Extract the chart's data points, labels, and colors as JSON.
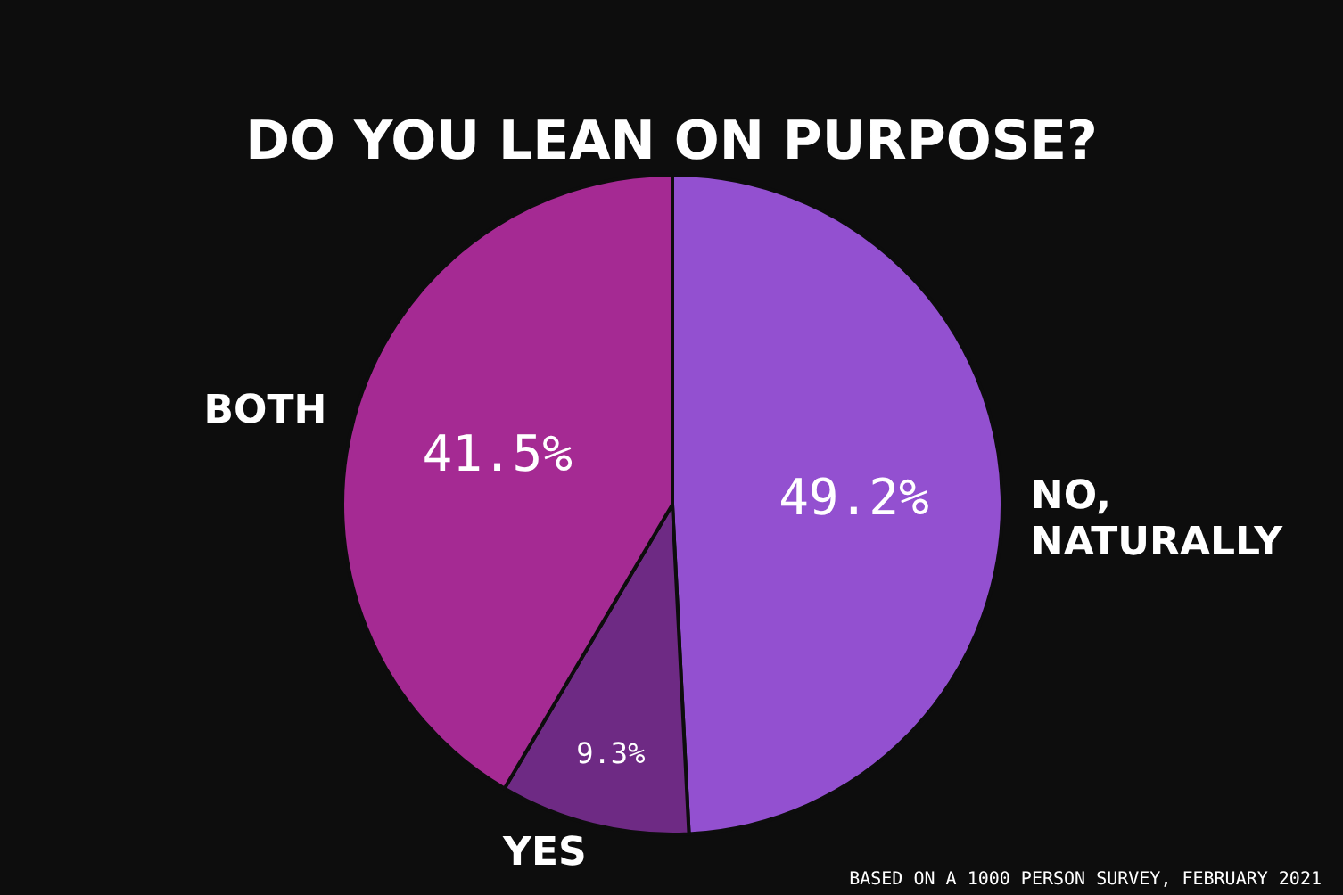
{
  "chart_data": {
    "type": "pie",
    "title": "DO YOU LEAN ON PURPOSE?",
    "categories": [
      "NO, NATURALLY",
      "YES",
      "BOTH"
    ],
    "values": [
      49.2,
      9.3,
      41.5
    ],
    "value_labels": [
      "49.2%",
      "9.3%",
      "41.5%"
    ],
    "colors": [
      "#9350d0",
      "#6e2a84",
      "#a52a93"
    ],
    "annotations": [
      "BASED ON A 1000 PERSON SURVEY, FEBRUARY 2021"
    ]
  }
}
